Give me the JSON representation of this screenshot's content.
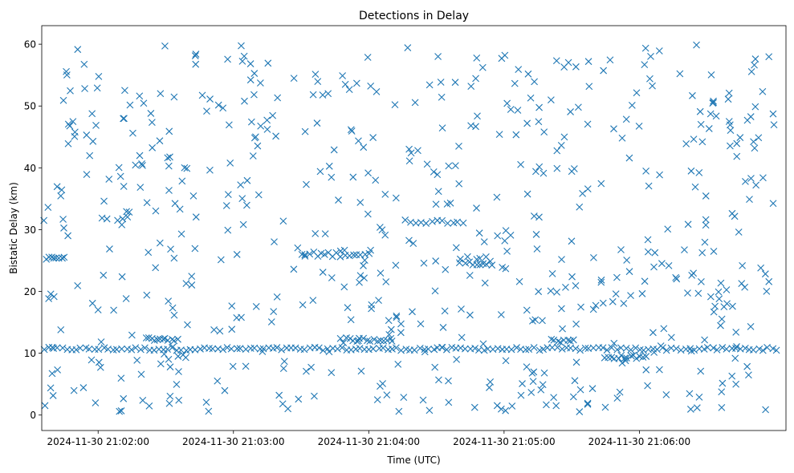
{
  "chart_data": {
    "type": "scatter",
    "title": "Detections in Delay",
    "xlabel": "Time (UTC)",
    "ylabel": "Bistatic Delay (km)",
    "marker": "x",
    "marker_color": "#1f77b4",
    "x_unit": "seconds after 2024-11-30 21:01:35 UTC",
    "xlim": [
      0,
      330
    ],
    "ylim": [
      -2.5,
      63
    ],
    "x_ticks": [
      {
        "value": 25,
        "label": "2024-11-30 21:02:00"
      },
      {
        "value": 85,
        "label": "2024-11-30 21:03:00"
      },
      {
        "value": 145,
        "label": "2024-11-30 21:04:00"
      },
      {
        "value": 205,
        "label": "2024-11-30 21:05:00"
      },
      {
        "value": 265,
        "label": "2024-11-30 21:06:00"
      }
    ],
    "y_ticks": [
      0,
      10,
      20,
      30,
      40,
      50,
      60
    ],
    "grid": false,
    "bands": [
      {
        "y": 10.7,
        "x_start": 1,
        "x_end": 324,
        "count": 160,
        "jitter": 0.25
      },
      {
        "y": 12.3,
        "x_start": 46,
        "x_end": 60,
        "count": 12,
        "jitter": 0.3
      },
      {
        "y": 12.2,
        "x_start": 135,
        "x_end": 155,
        "count": 14,
        "jitter": 0.3
      },
      {
        "y": 12.0,
        "x_start": 226,
        "x_end": 236,
        "count": 8,
        "jitter": 0.3
      },
      {
        "y": 9.4,
        "x_start": 250,
        "x_end": 268,
        "count": 14,
        "jitter": 0.3
      },
      {
        "y": 25.4,
        "x_start": 2,
        "x_end": 10,
        "count": 8,
        "jitter": 0.2
      },
      {
        "y": 26.0,
        "x_start": 115,
        "x_end": 145,
        "count": 18,
        "jitter": 0.4
      },
      {
        "y": 31.3,
        "x_start": 161,
        "x_end": 187,
        "count": 12,
        "jitter": 0.3
      },
      {
        "y": 24.6,
        "x_start": 188,
        "x_end": 199,
        "count": 8,
        "jitter": 0.3
      }
    ],
    "scatter": {
      "count": 620,
      "x_range": [
        0,
        326
      ],
      "y_range": [
        0.5,
        60
      ],
      "seed": 12345
    }
  }
}
